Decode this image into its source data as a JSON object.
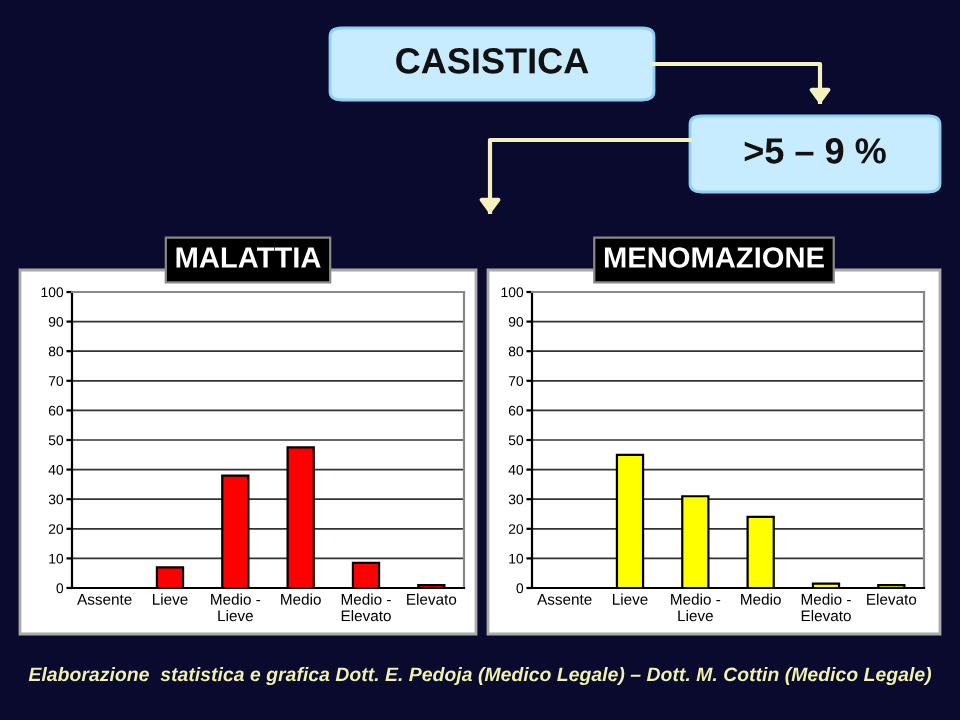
{
  "chart_data": [
    {
      "type": "bar",
      "title": "MALATTIA",
      "categories": [
        "Assente",
        "Lieve",
        "Medio -\nLieve",
        "Medio",
        "Medio -\nElevato",
        "Elevato"
      ],
      "values": [
        0,
        7,
        38,
        47.5,
        8.5,
        1
      ],
      "color": "#ff0000",
      "ylim": [
        0,
        100
      ],
      "yticks": [
        0,
        10,
        20,
        30,
        40,
        50,
        60,
        70,
        80,
        90,
        100
      ],
      "grid": "y",
      "annotations": [
        "CASISTICA",
        ">5 – 9 %"
      ]
    },
    {
      "type": "bar",
      "title": "MENOMAZIONE",
      "categories": [
        "Assente",
        "Lieve",
        "Medio -\nLieve",
        "Medio",
        "Medio -\nElevato",
        "Elevato"
      ],
      "values": [
        0,
        45,
        31,
        24,
        1.5,
        1
      ],
      "color": "#ffff00",
      "ylim": [
        0,
        100
      ],
      "yticks": [
        0,
        10,
        20,
        30,
        40,
        50,
        60,
        70,
        80,
        90,
        100
      ],
      "grid": "y",
      "annotations": [
        "Elaborazione  statistica e grafica Dott. E. Pedoja (Medico Legale) – Dott. M. Cottin (Medico Legale)"
      ]
    }
  ]
}
